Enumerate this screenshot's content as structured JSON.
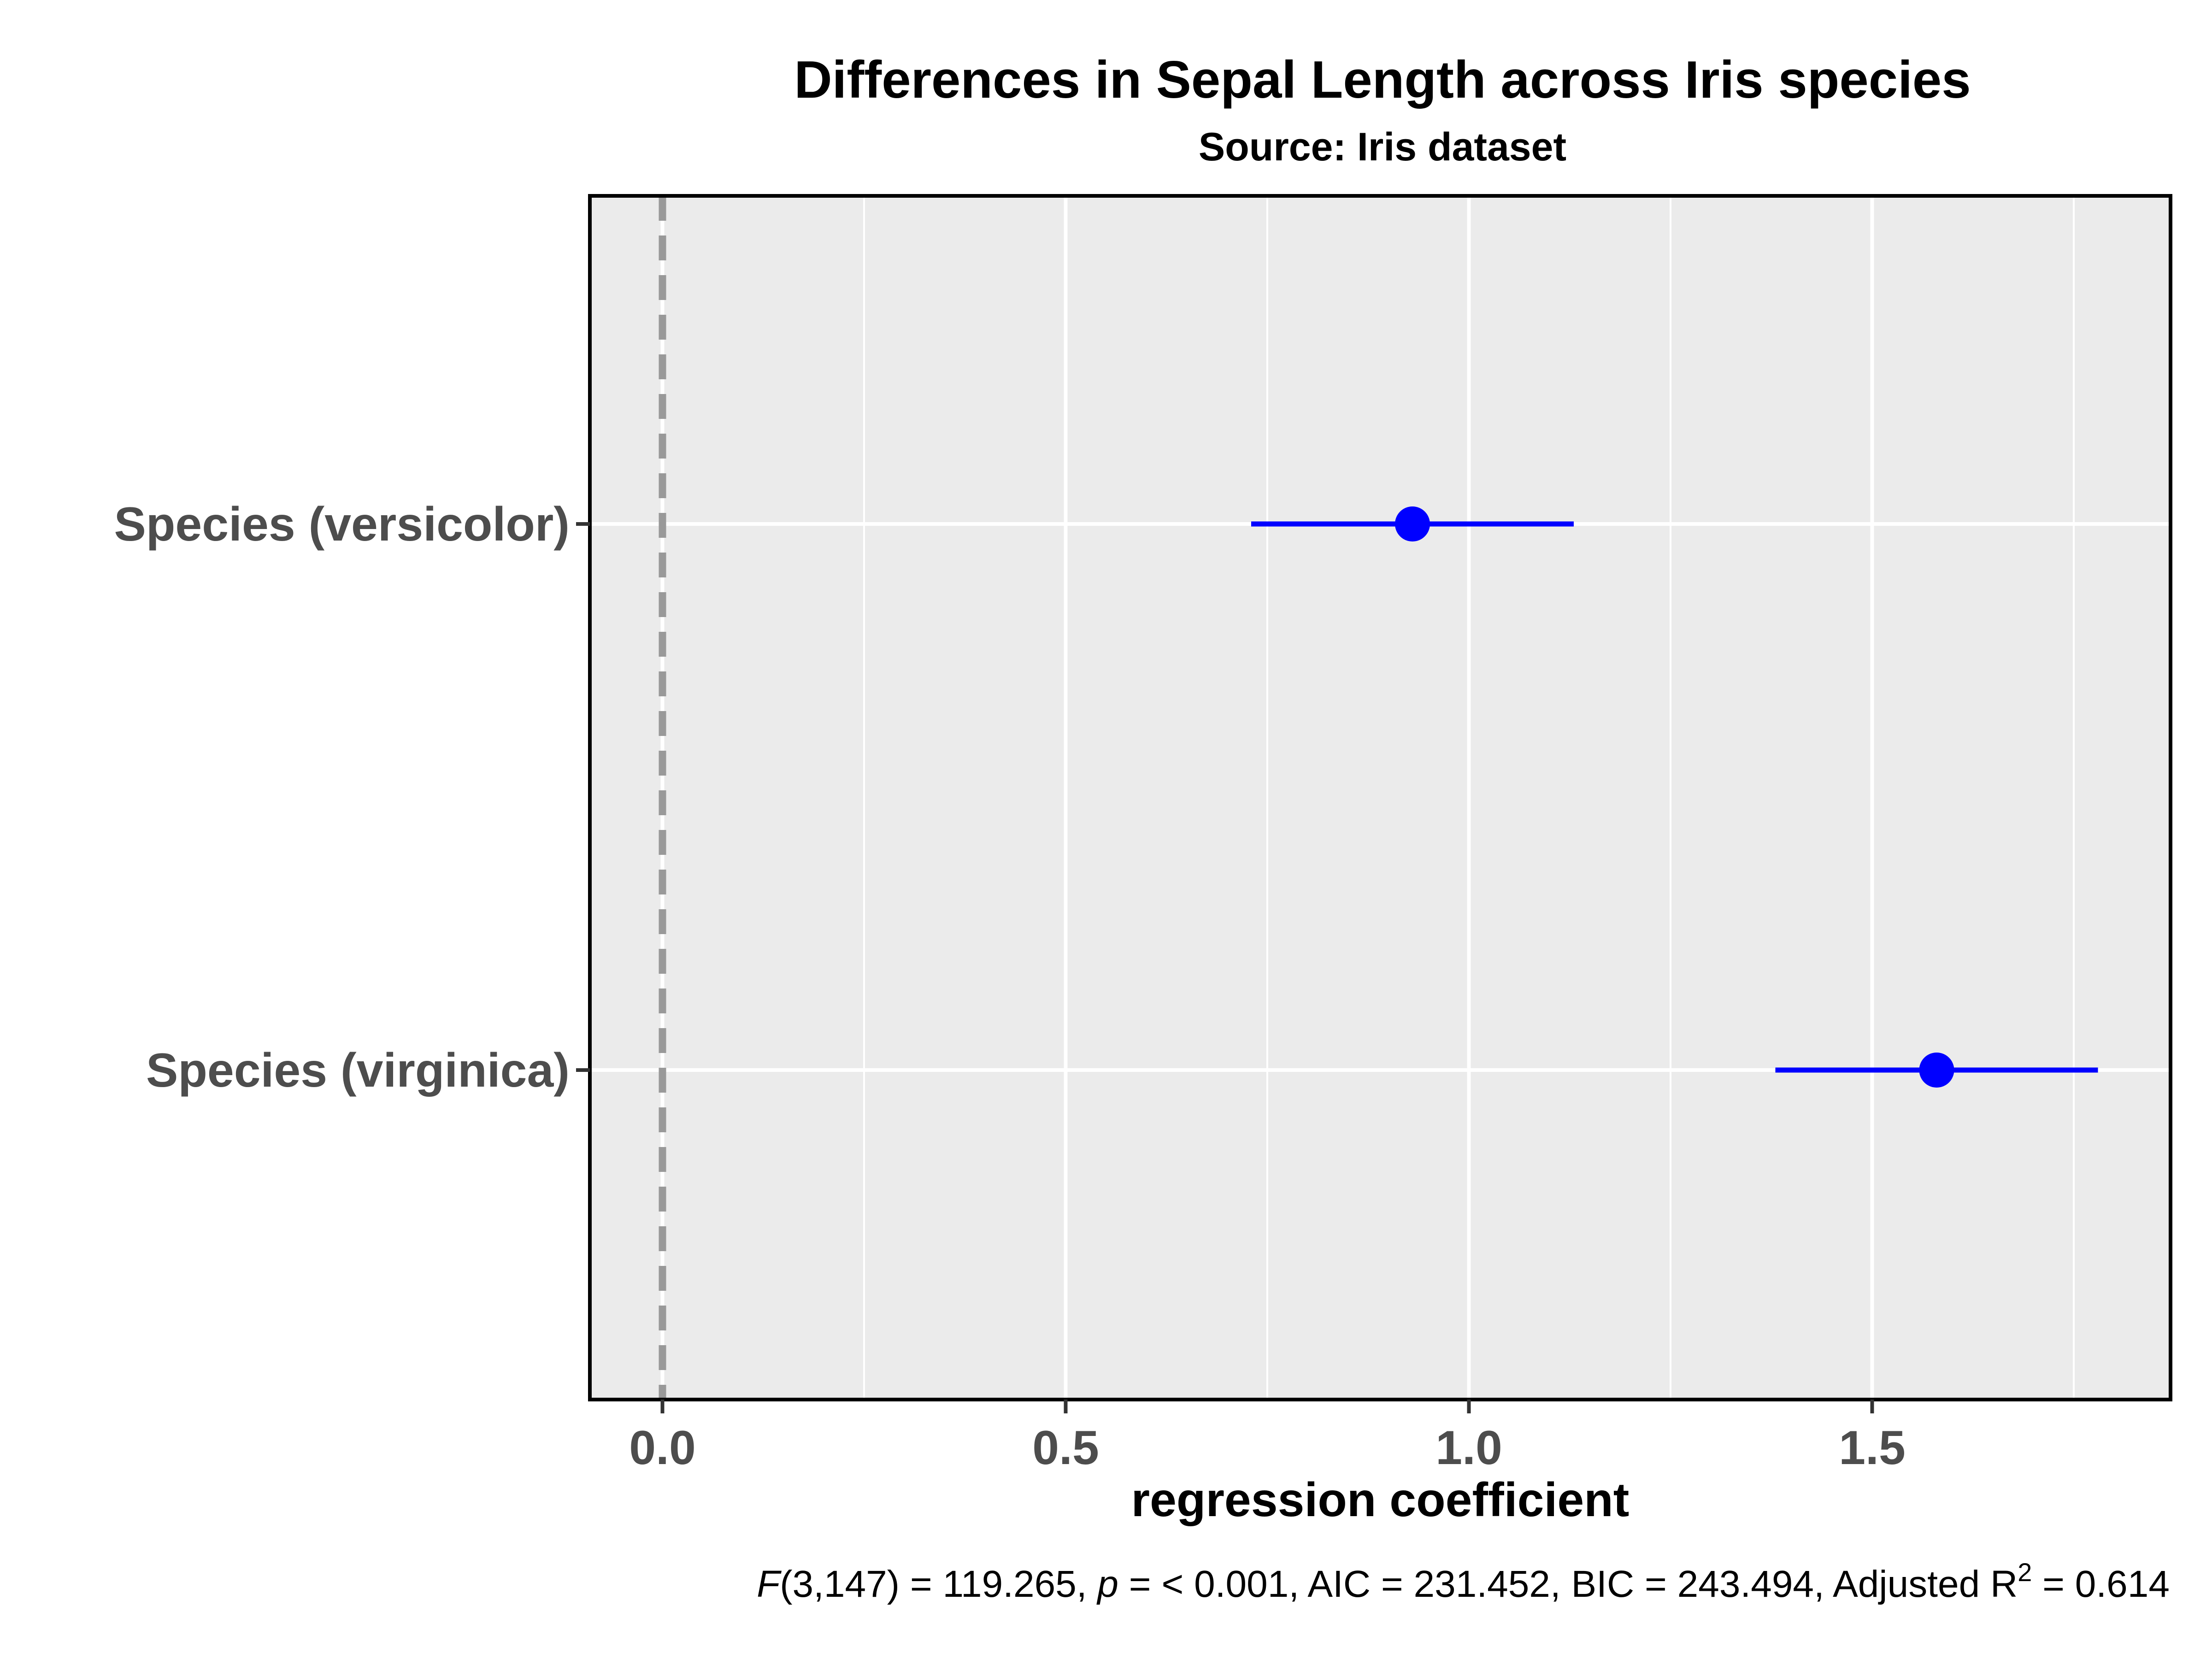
{
  "chart_data": {
    "type": "scatter",
    "title": "Differences in Sepal Length across Iris species",
    "subtitle": "Source: Iris dataset",
    "xlabel": "regression coefficient",
    "ylabel": "",
    "categories": [
      "Species (versicolor)",
      "Species (virginica)"
    ],
    "estimates": [
      0.93,
      1.58
    ],
    "ci_low": [
      0.73,
      1.38
    ],
    "ci_high": [
      1.13,
      1.78
    ],
    "xlim": [
      -0.09,
      1.87
    ],
    "xticks": [
      0.0,
      0.5,
      1.0,
      1.5
    ],
    "xtick_labels": [
      "0.0",
      "0.5",
      "1.0",
      "1.5"
    ],
    "reference_line": 0,
    "grid": true,
    "point_color": "#0000ff",
    "reference_line_color": "#999999",
    "panel_background": "#ebebeb",
    "caption": {
      "f_label": "F",
      "f_value": "(3,147) = 119.265, ",
      "p_label": "p",
      "p_value": " = < 0.001, AIC = 231.452, BIC = 243.494, Adjusted R",
      "r_sup": "2",
      "r_value": " = 0.614"
    }
  }
}
